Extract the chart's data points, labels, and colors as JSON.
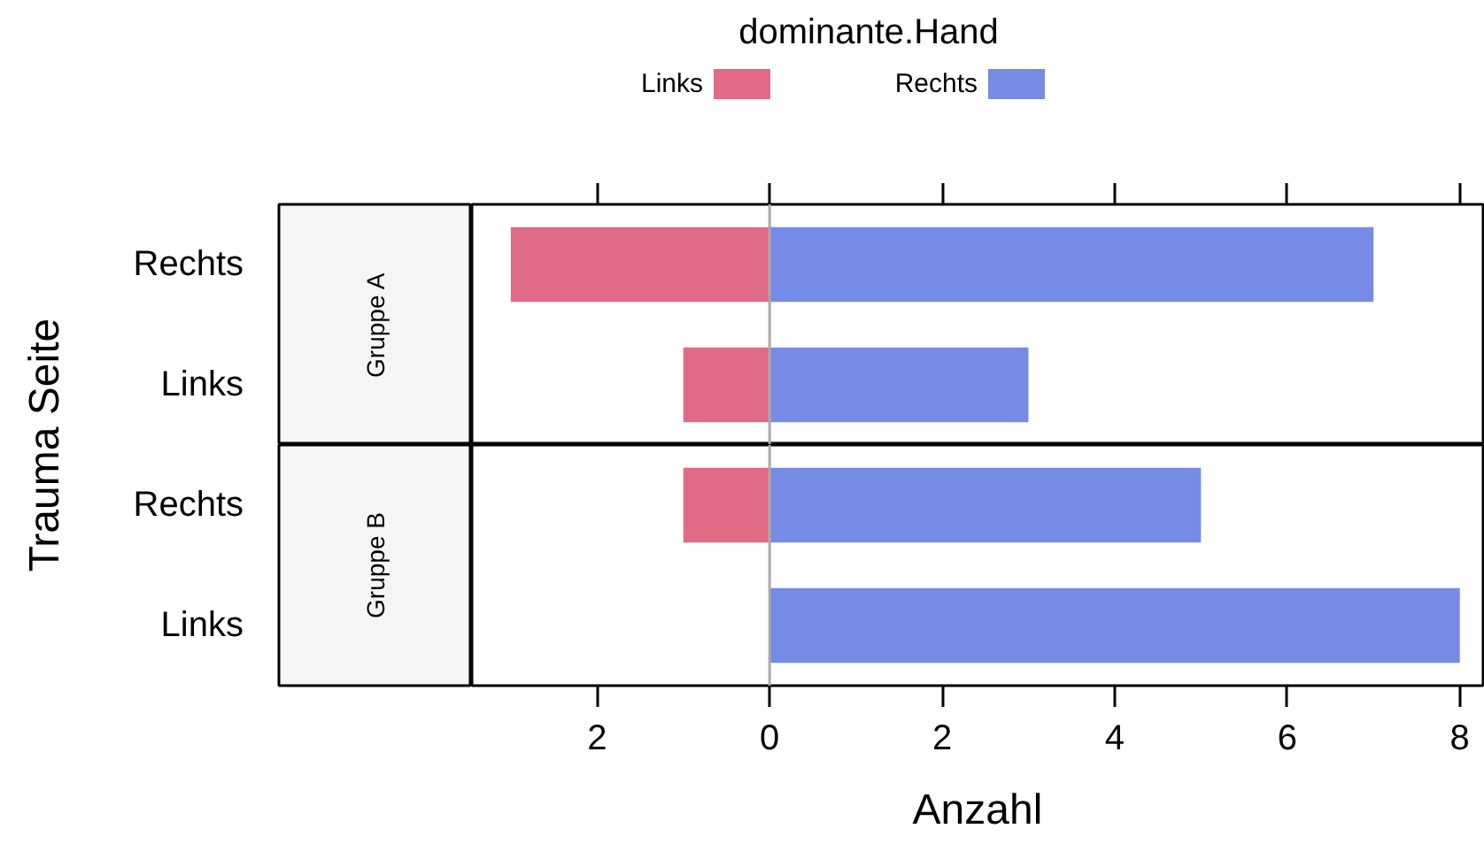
{
  "chart_data": [
    {
      "type": "bar",
      "orientation": "horizontal",
      "stacked": true,
      "title": "Gruppe A",
      "legend_title": "dominante.Hand",
      "legend": "top",
      "ylabel": "Trauma Seite",
      "tick_labels": "y",
      "categories": [
        "Rechts",
        "Links"
      ],
      "series": [
        {
          "name": "Links",
          "color": "#e16a86",
          "values": [
            -3,
            -1
          ]
        },
        {
          "name": "Rechts",
          "color": "#768be6",
          "values": [
            7,
            3
          ]
        }
      ],
      "xlim": [
        -3.45,
        8.27
      ],
      "xticks": [
        {
          "value": -2,
          "label": null
        },
        {
          "value": 0,
          "label": null
        },
        {
          "value": 2,
          "label": null
        },
        {
          "value": 4,
          "label": null
        },
        {
          "value": 6,
          "label": null
        },
        {
          "value": 8,
          "label": null
        }
      ],
      "ref_lines": [
        {
          "axis": "x",
          "value": 0,
          "color": "#aaaaaa"
        }
      ]
    },
    {
      "type": "bar",
      "orientation": "horizontal",
      "stacked": true,
      "title": "Gruppe B",
      "xlabel": "Anzahl",
      "categories": [
        "Rechts",
        "Links"
      ],
      "series": [
        {
          "color": "#e16a86",
          "values": [
            -1,
            0
          ]
        },
        {
          "color": "#768be6",
          "values": [
            5,
            8
          ]
        }
      ],
      "xlim": [
        -3.45,
        8.27
      ],
      "xticks": [
        {
          "value": -2,
          "label": "2"
        },
        0,
        2,
        4,
        6,
        8
      ],
      "ref_lines": [
        {
          "axis": "x",
          "value": 0,
          "color": "#aaaaaa"
        }
      ]
    }
  ]
}
